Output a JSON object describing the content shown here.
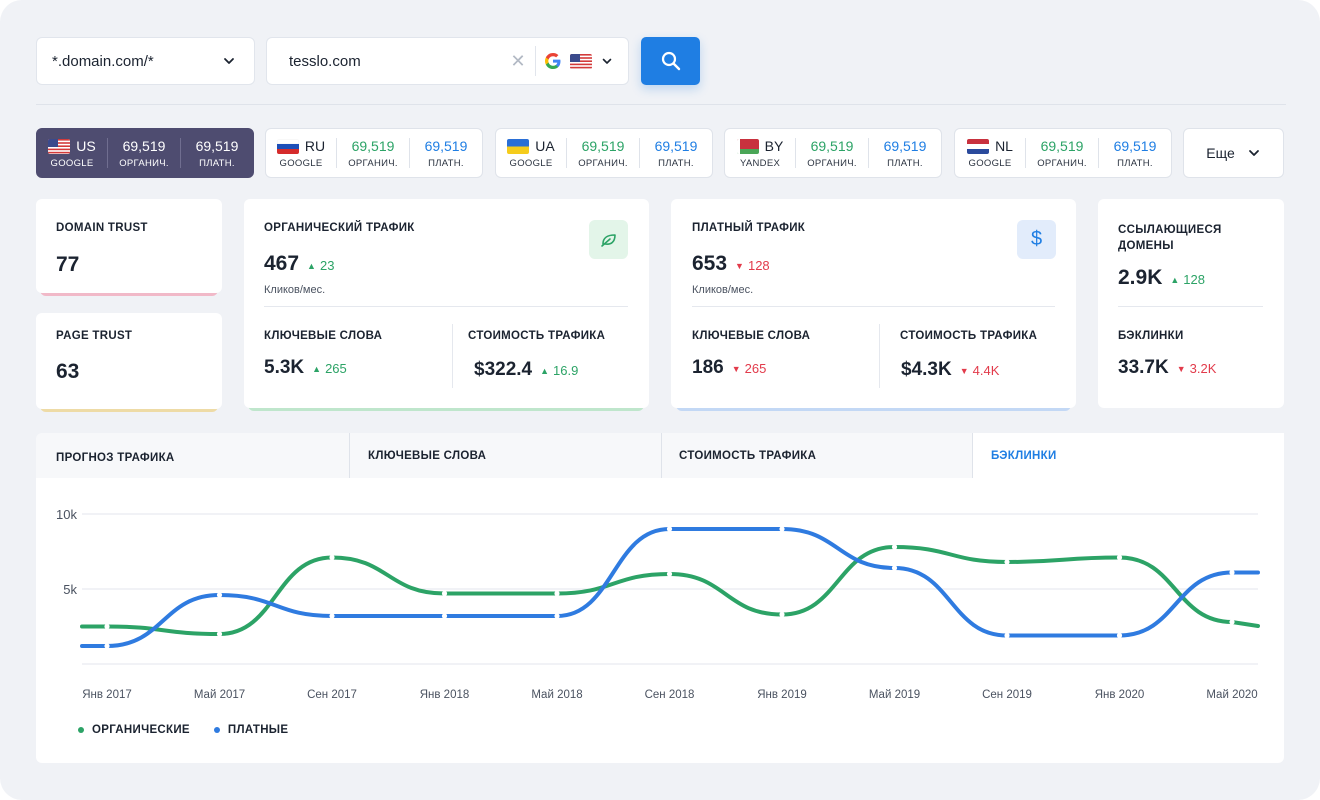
{
  "search": {
    "domain_mode": "*.domain.com/*",
    "query": "tesslo.com",
    "clear_symbol": "✕"
  },
  "regions": [
    {
      "country": "US",
      "engine": "GOOGLE",
      "organic": "69,519",
      "paid": "69,519",
      "organic_label": "ОРГАНИЧ.",
      "paid_label": "ПЛАТН.",
      "active": true
    },
    {
      "country": "RU",
      "engine": "GOOGLE",
      "organic": "69,519",
      "paid": "69,519",
      "organic_label": "ОРГАНИЧ.",
      "paid_label": "ПЛАТН.",
      "active": false
    },
    {
      "country": "UA",
      "engine": "GOOGLE",
      "organic": "69,519",
      "paid": "69,519",
      "organic_label": "ОРГАНИЧ.",
      "paid_label": "ПЛАТН.",
      "active": false
    },
    {
      "country": "BY",
      "engine": "YANDEX",
      "organic": "69,519",
      "paid": "69,519",
      "organic_label": "ОРГАНИЧ.",
      "paid_label": "ПЛАТН.",
      "active": false
    },
    {
      "country": "NL",
      "engine": "GOOGLE",
      "organic": "69,519",
      "paid": "69,519",
      "organic_label": "ОРГАНИЧ.",
      "paid_label": "ПЛАТН.",
      "active": false
    }
  ],
  "more_label": "Еще",
  "domain_trust": {
    "label": "DOMAIN TRUST",
    "value": "77"
  },
  "page_trust": {
    "label": "PAGE TRUST",
    "value": "63"
  },
  "organic": {
    "title": "ОРГАНИЧЕСКИЙ ТРАФИК",
    "value": "467",
    "delta": "23",
    "caption": "Кликов/мес.",
    "kw_label": "КЛЮЧЕВЫЕ СЛОВА",
    "kw_value": "5.3K",
    "kw_delta": "265",
    "cost_label": "СТОИМОСТЬ ТРАФИКА",
    "cost_value": "$322.4",
    "cost_delta": "16.9"
  },
  "paid": {
    "title": "ПЛАТНЫЙ ТРАФИК",
    "value": "653",
    "delta": "128",
    "caption": "Кликов/мес.",
    "kw_label": "КЛЮЧЕВЫЕ СЛОВА",
    "kw_value": "186",
    "kw_delta": "265",
    "cost_label": "СТОИМОСТЬ ТРАФИКА",
    "cost_value": "$4.3K",
    "cost_delta": "4.4K",
    "icon_symbol": "$"
  },
  "referring": {
    "title": "ССЫЛАЮЩИЕСЯ ДОМЕНЫ",
    "value": "2.9K",
    "delta": "128",
    "backlinks_label": "БЭКЛИНКИ",
    "backlinks_value": "33.7K",
    "backlinks_delta": "3.2K"
  },
  "tabs": [
    "ПРОГНОЗ ТРАФИКА",
    "КЛЮЧЕВЫЕ СЛОВА",
    "СТОИМОСТЬ ТРАФИКА",
    "БЭКЛИНКИ"
  ],
  "colors": {
    "organic": "#2ca366",
    "paid": "#2f7be0",
    "accent": "#1f7ee3",
    "active_region": "#4e4c70"
  },
  "chart_data": {
    "type": "line",
    "x": [
      "Янв 2017",
      "Май 2017",
      "Сен 2017",
      "Янв 2018",
      "Май 2018",
      "Сен 2018",
      "Янв 2019",
      "Май 2019",
      "Сен 2019",
      "Янв 2020",
      "Май 2020"
    ],
    "yticks": [
      "10k",
      "5k"
    ],
    "ylim": [
      0,
      10000
    ],
    "grid": true,
    "legend_position": "bottom-left",
    "series": [
      {
        "name": "ОРГАНИЧЕСКИЕ",
        "color": "#2ca366",
        "values": [
          2500,
          2000,
          7100,
          4700,
          4700,
          6000,
          3300,
          7800,
          6800,
          7100,
          2800
        ]
      },
      {
        "name": "ПЛАТНЫЕ",
        "color": "#2f7be0",
        "values": [
          1200,
          4600,
          3200,
          3200,
          3200,
          9000,
          9000,
          6400,
          1900,
          1900,
          6100
        ]
      }
    ]
  }
}
